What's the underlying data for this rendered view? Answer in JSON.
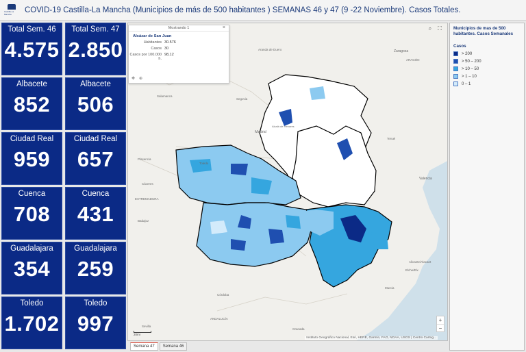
{
  "header": {
    "logo_text": "Castilla-La Mancha",
    "title": "COVID-19 Castilla-La Mancha (Municipios de más de 500 habitantes ) SEMANAS 46 y 47 (9 -22 Noviembre). Casos Totales."
  },
  "tiles": [
    {
      "label": "Total Sem. 46",
      "value": "4.575"
    },
    {
      "label": "Total Sem. 47",
      "value": "2.850"
    },
    {
      "label": "Albacete",
      "value": "852"
    },
    {
      "label": "Albacete",
      "value": "506"
    },
    {
      "label": "Ciudad Real",
      "value": "959"
    },
    {
      "label": "Ciudad Real",
      "value": "657"
    },
    {
      "label": "Cuenca",
      "value": "708"
    },
    {
      "label": "Cuenca",
      "value": "431"
    },
    {
      "label": "Guadalajara",
      "value": "354"
    },
    {
      "label": "Guadalajara",
      "value": "259"
    },
    {
      "label": "Toledo",
      "value": "1.702"
    },
    {
      "label": "Toledo",
      "value": "997"
    }
  ],
  "popup": {
    "header": "Mostrando 1",
    "close": "×",
    "title": "Alcázar de San Juan",
    "rows": [
      {
        "key": "Habitantes",
        "value": "30.576"
      },
      {
        "key": "Casos",
        "value": "30"
      },
      {
        "key": "Casos por 100.000 h.",
        "value": "98,12"
      }
    ]
  },
  "map": {
    "labels": {
      "aranda": "Aranda de Duero",
      "zaragoza": "Zaragoza",
      "aragon": "ARAGÓN",
      "salamanca": "Salamanca",
      "segovia": "Segovia",
      "madrid": "Madrid",
      "alcala": "Alcalá de Henares",
      "teruel": "Teruel",
      "plasencia": "Plasencia",
      "toledo": "Toledo",
      "caceres": "Cáceres",
      "valencia": "Valencia",
      "extremadura": "EXTREMADURA",
      "badajoz": "Badajoz",
      "alicante": "Alicante/Alacant",
      "elche": "Elche/Elx",
      "murcia": "Murcia",
      "cordoba": "Córdoba",
      "andalucia": "ANDALUCÍA",
      "sevilla": "Sevilla",
      "granada": "Granada"
    },
    "attribution": "Instituto Geográfico Nacional, Esri, HERE, Garmin, FAO, NOAA, USGS | Centro Cartog...",
    "scale_label": "20mi",
    "zoom_in": "+",
    "zoom_out": "−"
  },
  "tabs": [
    {
      "label": "Semana 47",
      "active": true
    },
    {
      "label": "Semana 46",
      "active": false
    }
  ],
  "legend": {
    "title": "Municipios de mas de 500 habitantes. Casos Semanales",
    "field": "Casos",
    "items": [
      {
        "label": "> 200",
        "color": "#0b2a86"
      },
      {
        "label": "> 50 – 200",
        "color": "#1f4fb0"
      },
      {
        "label": "> 10 – 50",
        "color": "#35a6df"
      },
      {
        "label": "> 1 – 10",
        "color": "#8ccaf0"
      },
      {
        "label": "0 – 1",
        "color": "#d3ebfb"
      }
    ]
  }
}
